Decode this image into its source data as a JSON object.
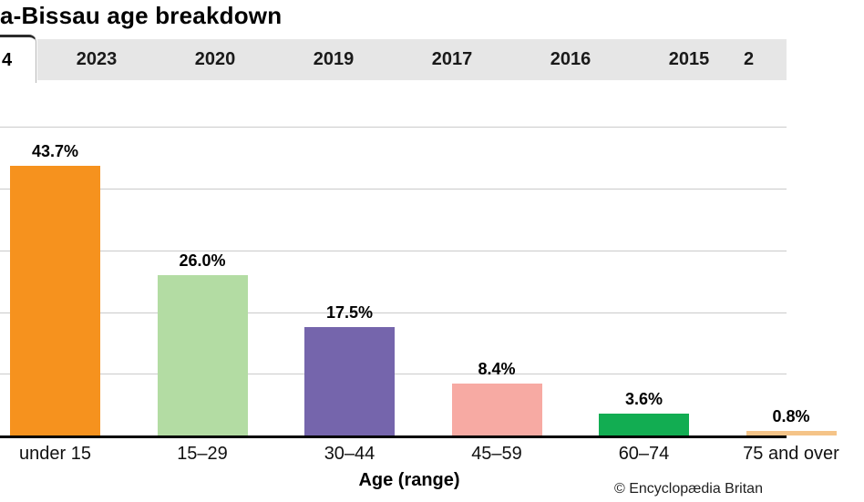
{
  "header": {
    "title": "a-Bissau age breakdown"
  },
  "tabs": {
    "active_label": "4",
    "items": [
      "2023",
      "2020",
      "2019",
      "2017",
      "2016",
      "2015"
    ],
    "overflow_label": "2"
  },
  "chart_data": {
    "type": "bar",
    "title": "a-Bissau age breakdown",
    "categories": [
      "under 15",
      "15–29",
      "30–44",
      "45–59",
      "60–74",
      "75 and over"
    ],
    "values": [
      43.7,
      26.0,
      17.5,
      8.4,
      3.6,
      0.8
    ],
    "value_labels": [
      "43.7%",
      "26.0%",
      "17.5%",
      "8.4%",
      "3.6%",
      "0.8%"
    ],
    "bar_colors": [
      "#F6921E",
      "#B3DCA3",
      "#7565AC",
      "#F7AAA3",
      "#12AD52",
      "#F5C488"
    ],
    "xlabel": "Age (range)",
    "ylabel": "",
    "ylim": [
      0,
      50
    ],
    "gridlines": [
      10,
      20,
      30,
      40,
      50
    ],
    "grid": "horizontal",
    "legend": "none"
  },
  "style": {
    "tab_bg": "#e6e6e6",
    "grid_color": "#cbcbcb",
    "axis_color": "#000000"
  },
  "footer": {
    "attribution": "© Encyclopædia Britan"
  }
}
